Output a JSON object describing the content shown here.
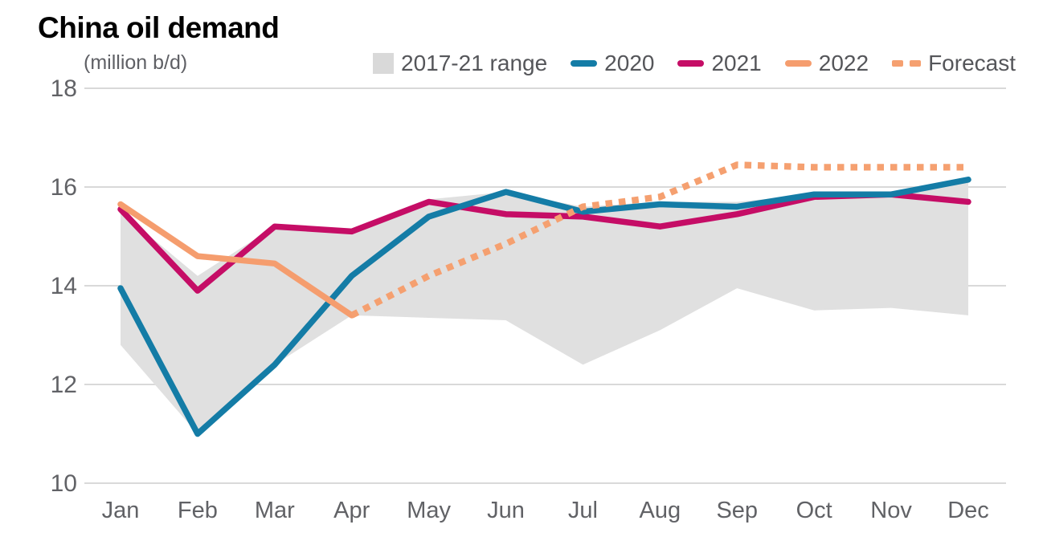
{
  "chart_data": {
    "type": "line",
    "title": "China oil demand",
    "unit": "(million b/d)",
    "categories": [
      "Jan",
      "Feb",
      "Mar",
      "Apr",
      "May",
      "Jun",
      "Jul",
      "Aug",
      "Sep",
      "Oct",
      "Nov",
      "Dec"
    ],
    "ylim": [
      10,
      18
    ],
    "yticks": [
      10,
      12,
      14,
      16,
      18
    ],
    "grid": "horizontal",
    "legend_position": "top-right",
    "range_series": {
      "name": "2017-21 range",
      "top": [
        15.5,
        14.2,
        15.2,
        15.1,
        15.75,
        15.9,
        15.6,
        15.7,
        15.7,
        15.85,
        15.85,
        16.1
      ],
      "bottom": [
        12.8,
        11.0,
        12.4,
        13.4,
        13.35,
        13.3,
        12.4,
        13.1,
        13.95,
        13.5,
        13.55,
        13.4
      ],
      "color": "#e0e0e0",
      "legend_color": "#d9d9d9"
    },
    "series": [
      {
        "name": "2020",
        "style": "solid",
        "color": "#147ca6",
        "values": [
          13.95,
          11.0,
          12.4,
          14.2,
          15.4,
          15.9,
          15.5,
          15.65,
          15.6,
          15.85,
          15.85,
          16.15
        ]
      },
      {
        "name": "2021",
        "style": "solid",
        "color": "#c50d66",
        "values": [
          15.55,
          13.9,
          15.2,
          15.1,
          15.7,
          15.45,
          15.4,
          15.2,
          15.45,
          15.8,
          15.85,
          15.7
        ]
      },
      {
        "name": "2022",
        "style": "solid",
        "color": "#f59d6e",
        "values": [
          15.65,
          14.6,
          14.45,
          13.4,
          null,
          null,
          null,
          null,
          null,
          null,
          null,
          null
        ]
      },
      {
        "name": "Forecast",
        "style": "dotted",
        "color": "#f5a070",
        "values": [
          null,
          null,
          null,
          13.4,
          14.2,
          14.85,
          15.6,
          15.8,
          16.45,
          16.4,
          16.4,
          16.4
        ]
      }
    ],
    "axis_text_color": "#616266",
    "grid_color": "#d9d9d9"
  }
}
